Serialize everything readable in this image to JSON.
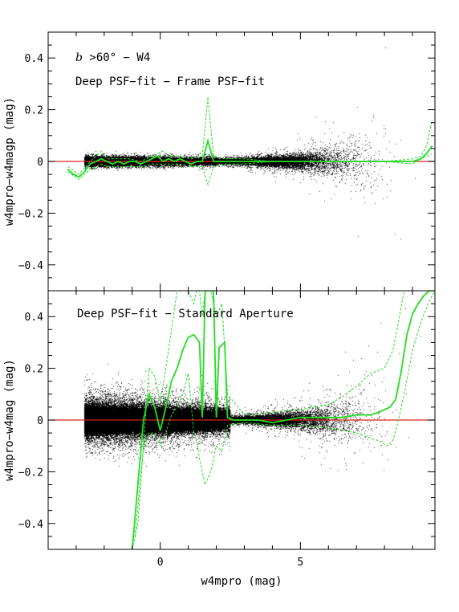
{
  "chart_data": {
    "type": "scatter",
    "xlabel": "w4mpro (mag)",
    "xlim": [
      -4,
      9.8
    ],
    "x_ticks": [
      0,
      5
    ],
    "panels": [
      {
        "id": "top",
        "ylabel": "w4mpro−w4magp (mag)",
        "ylim": [
          -0.5,
          0.5
        ],
        "y_ticks": [
          0.4,
          0.2,
          0,
          -0.2,
          -0.4
        ],
        "y_tick_labels": [
          "0.4",
          "0.2",
          "0",
          "−0.2",
          "−0.4"
        ],
        "annotation_line1_italic": "b",
        "annotation_line1_rest": " >60° − W4",
        "annotation_line2": "Deep PSF−fit − Frame PSF−fit",
        "reference_line_y": 0,
        "median_series": {
          "x": [
            -3.3,
            -3.1,
            -2.9,
            -2.7,
            -2.5,
            -2.3,
            -2.1,
            -1.9,
            -1.7,
            -1.5,
            -1.3,
            -1.1,
            -0.9,
            -0.7,
            -0.5,
            -0.3,
            -0.1,
            0.1,
            0.3,
            0.5,
            0.7,
            0.9,
            1.1,
            1.3,
            1.5,
            1.7,
            1.9,
            2.1,
            2.3,
            2.5,
            3,
            3.5,
            4,
            4.5,
            5,
            5.5,
            6,
            6.5,
            7,
            7.5,
            8,
            8.5,
            9,
            9.3,
            9.5,
            9.7
          ],
          "y": [
            -0.03,
            -0.05,
            -0.06,
            -0.04,
            -0.01,
            0,
            0.01,
            0,
            -0.01,
            0,
            -0.01,
            0,
            0,
            -0.01,
            0,
            0.01,
            0.02,
            0,
            0.01,
            0,
            0.01,
            0,
            -0.01,
            0,
            0,
            0.08,
            0,
            0,
            0,
            0,
            0,
            0,
            0,
            0,
            0,
            0,
            0,
            0,
            0,
            0,
            0,
            0,
            0,
            0.01,
            0.03,
            0.06
          ]
        },
        "scatter_upper": {
          "x": [
            -3.3,
            -2.9,
            -2.5,
            -2.1,
            -1.9,
            -1.5,
            -1.1,
            -0.7,
            -0.3,
            0.1,
            0.3,
            0.7,
            1.1,
            1.5,
            1.7,
            1.9,
            2.3,
            3,
            4,
            5,
            6,
            7,
            8,
            9,
            9.3,
            9.5,
            9.7
          ],
          "y": [
            -0.02,
            -0.05,
            0,
            0.04,
            0.01,
            0.01,
            0.01,
            0,
            0.02,
            0.04,
            0.02,
            0.02,
            0.01,
            0.02,
            0.25,
            0.02,
            0.01,
            0.01,
            0,
            0,
            0,
            0,
            0,
            0.01,
            0.02,
            0.06,
            0.16
          ]
        },
        "scatter_lower": {
          "x": [
            -3.3,
            -2.9,
            -2.5,
            -2.1,
            -1.9,
            -1.5,
            -1.1,
            -0.7,
            -0.3,
            0.1,
            0.3,
            0.7,
            1.1,
            1.5,
            1.7,
            1.9,
            2.3,
            3,
            4,
            5,
            6,
            7,
            8,
            9,
            9.3,
            9.5,
            9.7
          ],
          "y": [
            -0.04,
            -0.07,
            -0.03,
            -0.01,
            -0.02,
            -0.02,
            -0.02,
            -0.02,
            -0.01,
            -0.01,
            -0.01,
            -0.01,
            -0.02,
            -0.02,
            -0.09,
            -0.02,
            -0.01,
            -0.01,
            0,
            0,
            0,
            0,
            0,
            -0.01,
            0.01,
            0.02,
            0.03
          ]
        }
      },
      {
        "id": "bottom",
        "ylabel": "w4mpro−w4mag (mag)",
        "ylim": [
          -0.5,
          0.5
        ],
        "y_ticks": [
          0.4,
          0.2,
          0,
          -0.2,
          -0.4
        ],
        "y_tick_labels": [
          "0.4",
          "0.2",
          "0",
          "−0.2",
          "−0.4"
        ],
        "annotation": "Deep PSF−fit − Standard Aperture",
        "reference_line_y": 0,
        "median_series": {
          "x": [
            -1.0,
            -0.8,
            -0.6,
            -0.4,
            -0.2,
            0,
            0.2,
            0.4,
            0.6,
            0.8,
            1.0,
            1.2,
            1.4,
            1.5,
            1.6,
            1.7,
            1.8,
            1.9,
            2.0,
            2.1,
            2.3,
            2.4,
            2.6,
            3,
            3.5,
            4,
            4.5,
            5,
            5.5,
            6,
            6.5,
            7,
            7.5,
            7.8,
            8.0,
            8.2,
            8.4,
            8.6,
            8.8,
            9.0,
            9.2,
            9.4,
            9.6,
            9.8
          ],
          "y": [
            -0.5,
            -0.25,
            0,
            0.1,
            0.05,
            -0.04,
            0.05,
            0.15,
            0.2,
            0.27,
            0.32,
            0.33,
            0.3,
            0.01,
            0.5,
            0.5,
            0.5,
            0.5,
            0.01,
            0.28,
            0.3,
            0.01,
            0,
            0,
            0,
            -0.01,
            0,
            0.01,
            0.01,
            0.01,
            0.01,
            0.02,
            0.02,
            0.03,
            0.04,
            0.05,
            0.08,
            0.19,
            0.33,
            0.41,
            0.45,
            0.48,
            0.5,
            0.5
          ]
        },
        "scatter_upper": {
          "x": [
            -0.9,
            -0.6,
            -0.4,
            -0.2,
            0,
            0.2,
            0.4,
            0.6,
            0.8,
            1.0,
            1.2,
            1.3,
            1.4,
            1.5,
            1.6,
            1.8,
            2.0,
            2.2,
            2.4,
            3,
            4,
            5,
            6,
            6.5,
            7,
            7.5,
            8.0,
            8.3,
            8.5,
            8.7,
            9.0,
            9.2
          ],
          "y": [
            -0.45,
            -0.1,
            0.2,
            0.17,
            0.07,
            0.2,
            0.35,
            0.5,
            0.5,
            0.5,
            0.45,
            0.5,
            0.5,
            0.4,
            0.5,
            0.5,
            0.4,
            0.45,
            0.1,
            0.02,
            0.03,
            0.04,
            0.06,
            0.09,
            0.13,
            0.18,
            0.2,
            0.27,
            0.38,
            0.5,
            0.5,
            0.5
          ]
        },
        "scatter_lower": {
          "x": [
            -1.0,
            -0.8,
            -0.6,
            -0.4,
            -0.2,
            0,
            0.2,
            0.4,
            0.6,
            0.8,
            1.0,
            1.2,
            1.3,
            1.4,
            1.6,
            1.8,
            2.0,
            2.2,
            2.4,
            3,
            4,
            5,
            6,
            7,
            7.5,
            7.8,
            8.1,
            8.3,
            8.5,
            8.7,
            9.0,
            9.3,
            9.6,
            9.8
          ],
          "y": [
            -0.5,
            -0.4,
            -0.1,
            -0.05,
            -0.05,
            -0.1,
            -0.05,
            0.02,
            0.05,
            0.1,
            0.18,
            -0.05,
            -0.08,
            -0.15,
            -0.25,
            -0.2,
            -0.1,
            -0.12,
            -0.02,
            -0.01,
            -0.02,
            -0.02,
            -0.03,
            -0.05,
            -0.07,
            -0.08,
            -0.1,
            -0.08,
            0,
            0.1,
            0.27,
            0.38,
            0.46,
            0.5
          ]
        }
      }
    ],
    "colors": {
      "points": "#000000",
      "median": "#22dd22",
      "scatter_band": "#22dd22",
      "reference": "#e02020"
    }
  }
}
